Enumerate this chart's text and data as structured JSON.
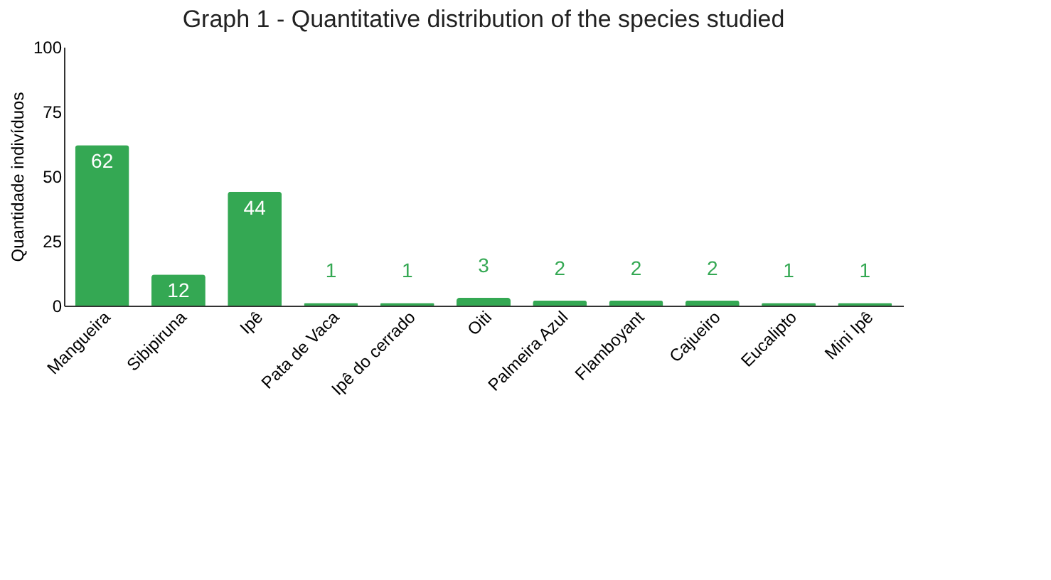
{
  "chart_data": {
    "type": "bar",
    "title": "Graph 1 - Quantitative distribution of the species studied",
    "ylabel": "Quantidade indivíduos",
    "categories": [
      "Mangueira",
      "Sibipiruna",
      "Ipê",
      "Pata de Vaca",
      "Ipê do cerrado",
      "Oiti",
      "Palmeira Azul",
      "Flamboyant",
      "Cajueiro",
      "Eucalipto",
      "Mini Ipê"
    ],
    "values": [
      62,
      12,
      44,
      1,
      1,
      3,
      2,
      2,
      2,
      1,
      1
    ],
    "color": "#34a853",
    "ylim": [
      0,
      100
    ],
    "yticks": [
      0,
      25,
      50,
      75,
      100
    ],
    "grid": false,
    "data_labels": true
  }
}
